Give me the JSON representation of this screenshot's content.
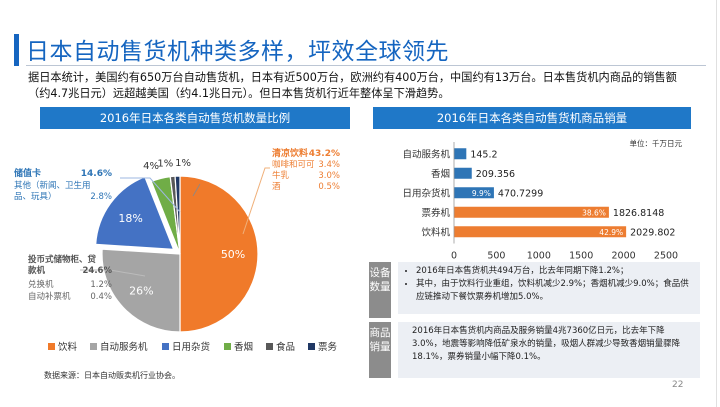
{
  "page": {
    "title": "日本自动售货机种类多样，坪效全球领先",
    "intro": "据日本统计，美国约有650万台自动售货机，日本有近500万台，欧洲约有400万台，中国约有13万台。日本售货机内商品的销售额（约4.7兆日元）远超越美国（约4.1兆日元）。但日本售货机行近年整体呈下滑趋势。",
    "source": "数据来源：日本自动贩卖机行业协会。",
    "page_number": "22"
  },
  "left_section": {
    "title": "2016年日本各类自动售货机数量比例"
  },
  "right_section": {
    "title": "2016年日本各类自动售货机商品销量",
    "unit": "单位：千万日元"
  },
  "notes": {
    "equipment_tag": "设备数量",
    "equipment_items": [
      "2016年日本售货机共494万台，比去年同期下降1.2%；",
      "其中，由于饮料行业重组，饮料机减少2.9%；香烟机减少9.0%；食品供应链推动下餐饮票券机增加5.0%。"
    ],
    "sales_tag": "商品销量",
    "sales_text": "2016年日本售货机内商品及服务销量4兆7360亿日元，比去年下降3.0%，地震等影响降低矿泉水的销量，吸烟人群减少导致香烟销量骤降18.1%，票券销量小幅下降0.1%。"
  },
  "chart_data": [
    {
      "type": "pie",
      "title": "2016年日本各类自动售货机数量比例",
      "slices": [
        {
          "name": "饮料",
          "value": 50,
          "label": "50%",
          "color": "#f07a2a"
        },
        {
          "name": "自动服务机",
          "value": 26,
          "label": "26%",
          "color": "#a5a5a5"
        },
        {
          "name": "日用杂货",
          "value": 18,
          "label": "18%",
          "color": "#4472c4"
        },
        {
          "name": "香烟",
          "value": 4,
          "label": "4%",
          "color": "#70ad47"
        },
        {
          "name": "食品",
          "value": 1,
          "label": "1%",
          "color": "#595959"
        },
        {
          "name": "票务",
          "value": 1,
          "label": "1%",
          "color": "#203864"
        }
      ],
      "legend_position": "bottom",
      "annotations": {
        "beverage": {
          "header": {
            "name": "清凉饮料",
            "value": "43.2%"
          },
          "items": [
            {
              "name": "咖啡和可可",
              "value": "3.4%"
            },
            {
              "name": "牛乳",
              "value": "3.0%"
            },
            {
              "name": "酒",
              "value": "0.5%"
            }
          ]
        },
        "daily": {
          "header": {
            "name": "储值卡",
            "value": "14.6%"
          },
          "items": [
            {
              "name": "其他（新闻、卫生用品、玩具）",
              "value": "2.8%"
            }
          ]
        },
        "service": {
          "header": {
            "name": "投币式储物柜、贷款机",
            "value": "24.6%"
          },
          "items": [
            {
              "name": "兑换机",
              "value": "1.2%"
            },
            {
              "name": "自动补票机",
              "value": "0.4%"
            }
          ]
        }
      }
    },
    {
      "type": "bar",
      "orientation": "horizontal",
      "title": "2016年日本各类自动售货机商品销量",
      "categories": [
        "自动服务机",
        "香烟",
        "日用杂货机",
        "票券机",
        "饮料机"
      ],
      "values": [
        145.2,
        209.356,
        470.7299,
        1826.8148,
        2029.802
      ],
      "value_labels": [
        "145.2",
        "209.356",
        "470.7299",
        "1826.8148",
        "2029.802"
      ],
      "percent_labels": [
        "",
        "",
        "9.9%",
        "38.6%",
        "42.9%"
      ],
      "colors": [
        "#2e75b6",
        "#2e75b6",
        "#2e75b6",
        "#ed7d31",
        "#ed7d31"
      ],
      "xlim": [
        0,
        2500
      ],
      "xticks": [
        0,
        500,
        1000,
        1500,
        2000,
        2500
      ],
      "grid": false
    }
  ]
}
